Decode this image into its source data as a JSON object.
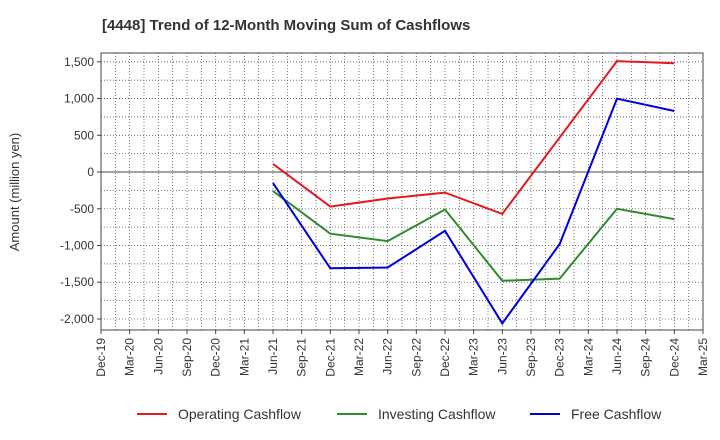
{
  "chart_data": {
    "type": "line",
    "title": "[4448]  Trend of 12-Month Moving Sum of Cashflows",
    "xlabel": "",
    "ylabel": "Amount (million yen)",
    "categories": [
      "Dec-19",
      "Mar-20",
      "Jun-20",
      "Sep-20",
      "Dec-20",
      "Mar-21",
      "Jun-21",
      "Sep-21",
      "Dec-21",
      "Mar-22",
      "Jun-22",
      "Sep-22",
      "Dec-22",
      "Mar-23",
      "Jun-23",
      "Sep-23",
      "Dec-23",
      "Mar-24",
      "Jun-24",
      "Sep-24",
      "Dec-24",
      "Mar-25"
    ],
    "ylim": [
      -2150,
      1620
    ],
    "yticks": [
      1500,
      1000,
      500,
      0,
      -500,
      -1000,
      -1500,
      -2000
    ],
    "ytick_labels": [
      "1,500",
      "1,000",
      "500",
      "0",
      "-500",
      "-1,000",
      "-1,500",
      "-2,000"
    ],
    "grid": true,
    "legend_position": "bottom",
    "series": [
      {
        "name": "Operating Cashflow",
        "color": "#e41a1c",
        "values": [
          null,
          null,
          null,
          null,
          null,
          null,
          110,
          null,
          -470,
          null,
          -360,
          null,
          -280,
          null,
          -570,
          null,
          null,
          null,
          1510,
          null,
          1480,
          null
        ]
      },
      {
        "name": "Investing Cashflow",
        "color": "#2e8b2e",
        "values": [
          null,
          null,
          null,
          null,
          null,
          null,
          -260,
          null,
          -840,
          null,
          -940,
          null,
          -510,
          null,
          -1480,
          null,
          -1450,
          null,
          -500,
          null,
          -640,
          null
        ]
      },
      {
        "name": "Free Cashflow",
        "color": "#0000dd",
        "values": [
          null,
          null,
          null,
          null,
          null,
          null,
          -150,
          null,
          -1310,
          null,
          -1300,
          null,
          -800,
          null,
          -2060,
          null,
          -980,
          null,
          1000,
          null,
          830,
          null
        ]
      }
    ]
  }
}
